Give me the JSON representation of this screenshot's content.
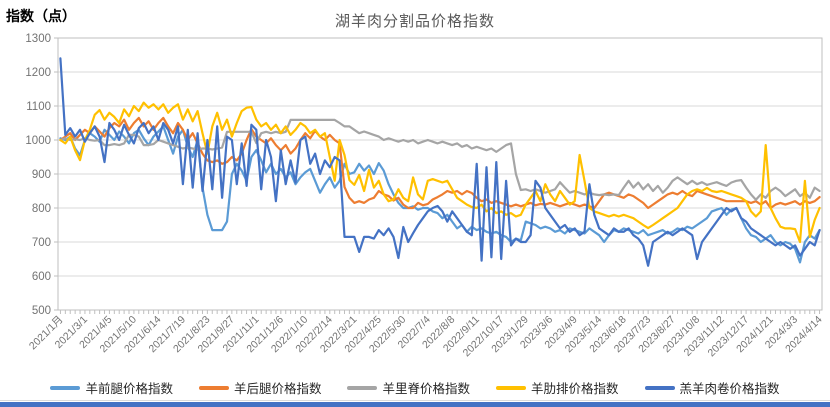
{
  "page": {
    "accent_color": "#4472C4",
    "background": "#ffffff"
  },
  "chart_data": {
    "type": "line",
    "title": "湖羊肉分割品价格指数",
    "y_axis_title": "指数（点）",
    "xlabel": "",
    "ylabel": "指数（点）",
    "ylim": [
      500,
      1300
    ],
    "y_ticks": [
      500,
      600,
      700,
      800,
      900,
      1000,
      1100,
      1200,
      1300
    ],
    "grid": true,
    "legend_position": "bottom",
    "n_points": 156,
    "label_every": 5,
    "x_labels": [
      "2021/1月",
      "2021/3/1",
      "2021/4/5",
      "2021/5/10",
      "2021/6/14",
      "2021/7/19",
      "2021/8/23",
      "2021/9/27",
      "2021/11/1",
      "2021/12/6",
      "2022/1/10",
      "2022/2/14",
      "2022/3/21",
      "2022/4/25",
      "2022/5/30",
      "2022/7/4",
      "2022/8/8",
      "2022/9/11",
      "2022/10/17",
      "2023/1/29",
      "2023/3/6",
      "2023/4/9",
      "2023/5/14",
      "2023/6/18",
      "2023/7/23",
      "2023/8/27",
      "2023/10/8",
      "2023/11/12",
      "2023/12/17",
      "2024/1/21",
      "2024/3/3",
      "2024/4/14"
    ],
    "series": [
      {
        "name": "羊前腿价格指数",
        "color": "#5B9BD5",
        "values": [
          1005,
          1000,
          1010,
          975,
          955,
          1000,
          1020,
          1010,
          995,
          1030,
          1015,
          1000,
          1025,
          1010,
          990,
          1020,
          1030,
          1005,
          985,
          1010,
          1025,
          1040,
          1000,
          960,
          1010,
          1030,
          980,
          950,
          1000,
          860,
          780,
          735,
          735,
          735,
          760,
          900,
          930,
          910,
          880,
          950,
          970,
          940,
          905,
          930,
          900,
          915,
          890,
          905,
          870,
          890,
          905,
          915,
          880,
          845,
          870,
          890,
          860,
          880,
          930,
          900,
          905,
          930,
          910,
          925,
          900,
          932,
          910,
          870,
          840,
          815,
          800,
          800,
          805,
          795,
          800,
          800,
          790,
          785,
          770,
          780,
          760,
          740,
          750,
          730,
          745,
          735,
          740,
          730,
          725,
          730,
          720,
          715,
          700,
          710,
          705,
          760,
          755,
          750,
          740,
          745,
          740,
          730,
          735,
          725,
          740,
          735,
          730,
          725,
          740,
          730,
          720,
          700,
          720,
          735,
          730,
          740,
          735,
          730,
          725,
          735,
          720,
          725,
          730,
          735,
          725,
          730,
          740,
          735,
          745,
          740,
          750,
          760,
          770,
          790,
          795,
          800,
          780,
          795,
          800,
          770,
          740,
          720,
          715,
          700,
          710,
          720,
          700,
          690,
          700,
          695,
          680,
          640,
          700,
          720,
          710,
          735
        ]
      },
      {
        "name": "羊后腿价格指数",
        "color": "#ED7D31",
        "values": [
          1000,
          1010,
          1020,
          1000,
          1015,
          1030,
          1020,
          1040,
          1025,
          1010,
          1035,
          1050,
          1040,
          1060,
          1030,
          1050,
          1065,
          1040,
          1055,
          1030,
          1050,
          1065,
          1040,
          1020,
          1050,
          1030,
          1000,
          1020,
          990,
          960,
          940,
          935,
          940,
          930,
          935,
          950,
          940,
          960,
          1000,
          1032,
          1010,
          1000,
          990,
          1005,
          985,
          970,
          985,
          960,
          975,
          1000,
          1020,
          1005,
          1027,
          1010,
          1000,
          1015,
          1000,
          990,
          862,
          830,
          815,
          820,
          815,
          825,
          830,
          850,
          840,
          835,
          822,
          830,
          810,
          800,
          800,
          815,
          808,
          812,
          825,
          832,
          840,
          850,
          845,
          850,
          840,
          850,
          844,
          830,
          820,
          825,
          815,
          820,
          815,
          810,
          805,
          810,
          805,
          810,
          815,
          808,
          812,
          810,
          815,
          810,
          805,
          810,
          815,
          810,
          805,
          810,
          805,
          800,
          820,
          840,
          845,
          840,
          835,
          830,
          840,
          835,
          825,
          815,
          800,
          810,
          820,
          830,
          840,
          845,
          840,
          850,
          840,
          835,
          850,
          845,
          840,
          835,
          830,
          825,
          820,
          820,
          820,
          820,
          820,
          815,
          820,
          810,
          820,
          800,
          810,
          815,
          810,
          815,
          820,
          810,
          820,
          815,
          820,
          832
        ]
      },
      {
        "name": "羊里脊价格指数",
        "color": "#A5A5A5",
        "values": [
          1000,
          1005,
          1000,
          1002,
          1000,
          1005,
          1000,
          998,
          1000,
          985,
          985,
          988,
          985,
          990,
          1015,
          1015,
          1010,
          985,
          985,
          988,
          1000,
          995,
          990,
          985,
          980,
          975,
          978,
          975,
          972,
          975,
          975,
          972,
          975,
          978,
          1024,
          1024,
          1024,
          1024,
          1024,
          1024,
          991,
          1020,
          1024,
          1020,
          1024,
          1020,
          1024,
          1059,
          1059,
          1059,
          1059,
          1059,
          1059,
          1059,
          1059,
          1059,
          1059,
          1050,
          1040,
          1040,
          1030,
          1020,
          1025,
          1020,
          1015,
          1010,
          1000,
          1005,
          1000,
          995,
          1000,
          995,
          1000,
          990,
          995,
          1000,
          995,
          990,
          995,
          990,
          985,
          990,
          980,
          985,
          975,
          980,
          975,
          970,
          975,
          965,
          975,
          985,
          990,
          900,
          853,
          855,
          850,
          855,
          850,
          845,
          850,
          855,
          876,
          860,
          845,
          850,
          845,
          840,
          845,
          840,
          838,
          840,
          838,
          840,
          838,
          860,
          880,
          860,
          875,
          855,
          870,
          850,
          865,
          845,
          860,
          880,
          890,
          880,
          870,
          880,
          870,
          876,
          868,
          872,
          876,
          870,
          865,
          875,
          880,
          882,
          860,
          840,
          824,
          840,
          830,
          850,
          860,
          850,
          835,
          845,
          855,
          835,
          845,
          830,
          860,
          850
        ]
      },
      {
        "name": "羊肋排价格指数",
        "color": "#FFC000",
        "values": [
          1000,
          990,
          1010,
          970,
          941,
          1000,
          1030,
          1074,
          1088,
          1060,
          1080,
          1068,
          1050,
          1090,
          1070,
          1100,
          1085,
          1110,
          1095,
          1105,
          1090,
          1105,
          1080,
          1095,
          1105,
          1060,
          1090,
          1055,
          1085,
          1020,
          960,
          1040,
          1080,
          1030,
          1060,
          1010,
          1050,
          1085,
          1095,
          1097,
          1060,
          1040,
          1050,
          1030,
          1045,
          1020,
          1040,
          1015,
          1030,
          1050,
          1040,
          1020,
          1030,
          1010,
          1020,
          950,
          880,
          1000,
          956,
          882,
          868,
          897,
          850,
          912,
          860,
          880,
          840,
          820,
          825,
          855,
          830,
          820,
          890,
          840,
          825,
          880,
          885,
          880,
          875,
          880,
          855,
          830,
          820,
          810,
          803,
          800,
          810,
          790,
          800,
          785,
          790,
          780,
          785,
          775,
          780,
          810,
          830,
          850,
          820,
          870,
          840,
          820,
          850,
          830,
          810,
          820,
          956,
          880,
          800,
          790,
          785,
          780,
          775,
          780,
          775,
          780,
          775,
          770,
          760,
          750,
          741,
          750,
          760,
          770,
          780,
          790,
          800,
          820,
          840,
          850,
          855,
          850,
          859,
          850,
          847,
          850,
          845,
          840,
          835,
          830,
          820,
          790,
          775,
          790,
          985,
          800,
          770,
          745,
          740,
          740,
          738,
          700,
          880,
          715,
          765,
          800
        ]
      },
      {
        "name": "羔羊肉卷价格指数",
        "color": "#4472C4",
        "values": [
          1240,
          1015,
          1035,
          1010,
          1030,
          995,
          1020,
          1040,
          1010,
          935,
          1050,
          1030,
          1000,
          1045,
          1015,
          990,
          1035,
          1050,
          1020,
          1040,
          1000,
          1050,
          1030,
          990,
          1040,
          870,
          1030,
          860,
          1020,
          850,
          1000,
          855,
          1040,
          830,
          1010,
          1000,
          870,
          990,
          865,
          1045,
          1030,
          855,
          1000,
          950,
          820,
          970,
          870,
          940,
          875,
          1000,
          1010,
          930,
          960,
          900,
          940,
          920,
          950,
          940,
          715,
          715,
          715,
          671,
          715,
          715,
          710,
          735,
          720,
          740,
          715,
          653,
          744,
          700,
          726,
          750,
          770,
          790,
          800,
          806,
          790,
          760,
          790,
          770,
          750,
          730,
          720,
          930,
          645,
          920,
          655,
          935,
          650,
          880,
          690,
          710,
          700,
          700,
          720,
          880,
          860,
          800,
          780,
          760,
          740,
          750,
          730,
          740,
          720,
          730,
          870,
          780,
          740,
          730,
          720,
          740,
          730,
          730,
          740,
          720,
          710,
          690,
          630,
          700,
          710,
          720,
          730,
          720,
          730,
          740,
          730,
          720,
          650,
          700,
          720,
          740,
          760,
          780,
          800,
          790,
          800,
          770,
          760,
          740,
          730,
          720,
          710,
          700,
          690,
          700,
          690,
          680,
          690,
          660,
          680,
          700,
          690,
          735
        ]
      }
    ]
  }
}
